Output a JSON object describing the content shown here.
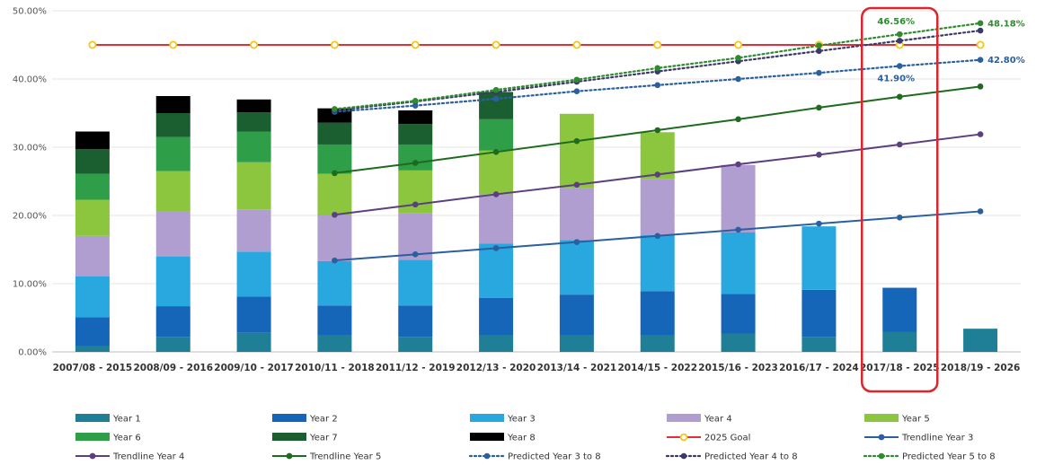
{
  "chart_data": {
    "type": "bar",
    "stacked": true,
    "categories": [
      "2007/08 - 2015",
      "2008/09 - 2016",
      "2009/10 - 2017",
      "2010/11 - 2018",
      "2011/12 - 2019",
      "2012/13 - 2020",
      "2013/14 - 2021",
      "2014/15 - 2022",
      "2015/16 - 2023",
      "2016/17 - 2024",
      "2017/18 - 2025",
      "2018/19 - 2026"
    ],
    "ylim": [
      0,
      50
    ],
    "yticks": [
      "0.00%",
      "10.00%",
      "20.00%",
      "30.00%",
      "40.00%",
      "50.00%"
    ],
    "grid": true,
    "legend_position": "bottom",
    "highlight_category": "2017/18 - 2025",
    "series": [
      {
        "name": "Year 1",
        "color": "#1f7f96",
        "values": [
          0.8,
          2.2,
          2.8,
          2.5,
          2.2,
          2.5,
          2.5,
          2.5,
          2.7,
          2.2,
          2.9,
          3.4
        ]
      },
      {
        "name": "Year 2",
        "color": "#1565b8",
        "values": [
          4.3,
          4.5,
          5.3,
          4.3,
          4.6,
          5.4,
          5.9,
          6.4,
          5.8,
          6.9,
          6.5,
          null
        ]
      },
      {
        "name": "Year 3",
        "color": "#29a8e0",
        "values": [
          6.0,
          7.3,
          6.6,
          6.5,
          6.7,
          8.0,
          8.0,
          8.2,
          9.0,
          9.3,
          null,
          null
        ]
      },
      {
        "name": "Year 4",
        "color": "#b19ed0",
        "values": [
          5.9,
          6.6,
          6.2,
          6.7,
          6.8,
          7.2,
          7.6,
          8.2,
          9.9,
          null,
          null,
          null
        ]
      },
      {
        "name": "Year 5",
        "color": "#8cc63f",
        "values": [
          5.3,
          5.9,
          6.9,
          6.1,
          6.3,
          6.4,
          10.9,
          6.9,
          null,
          null,
          null,
          null
        ]
      },
      {
        "name": "Year 6",
        "color": "#2e9e48",
        "values": [
          3.8,
          5.0,
          4.5,
          4.3,
          3.8,
          4.6,
          null,
          null,
          null,
          null,
          null,
          null
        ]
      },
      {
        "name": "Year 7",
        "color": "#1b5e30",
        "values": [
          3.6,
          3.5,
          2.8,
          3.2,
          3.0,
          4.0,
          null,
          null,
          null,
          null,
          null,
          null
        ]
      },
      {
        "name": "Year 8",
        "color": "#000000",
        "values": [
          2.6,
          2.5,
          1.9,
          2.1,
          2.0,
          null,
          null,
          null,
          null,
          null,
          null,
          null
        ]
      }
    ],
    "lines": [
      {
        "name": "2025 Goal",
        "color": "#e0303a",
        "marker_color": "#f5c518",
        "style": "solid",
        "x_start": 0,
        "values": [
          45,
          45,
          45,
          45,
          45,
          45,
          45,
          45,
          45,
          45,
          45,
          45
        ]
      },
      {
        "name": "Trendline Year 3",
        "color": "#2a5fa0",
        "style": "solid",
        "x_start": 3,
        "values": [
          13.4,
          14.3,
          15.2,
          16.1,
          17.0,
          17.9,
          18.8,
          19.7,
          20.6
        ]
      },
      {
        "name": "Trendline Year 4",
        "color": "#5c3f80",
        "style": "solid",
        "x_start": 3,
        "values": [
          20.1,
          21.6,
          23.1,
          24.5,
          26.0,
          27.5,
          28.9,
          30.4,
          31.9
        ]
      },
      {
        "name": "Trendline Year 5",
        "color": "#1e6b1e",
        "style": "solid",
        "x_start": 3,
        "values": [
          26.2,
          27.7,
          29.3,
          30.9,
          32.5,
          34.1,
          35.8,
          37.4,
          38.9
        ]
      },
      {
        "name": "Predicted Year 3 to 8",
        "color": "#2a5fa0",
        "style": "dotted",
        "x_start": 3,
        "values": [
          35.2,
          36.1,
          37.1,
          38.2,
          39.1,
          40.0,
          40.9,
          41.9,
          42.8
        ]
      },
      {
        "name": "Predicted Year 4 to 8",
        "color": "#3a3a6a",
        "style": "dotted",
        "x_start": 3,
        "values": [
          35.4,
          36.7,
          38.1,
          39.6,
          41.1,
          42.6,
          44.1,
          45.6,
          47.1
        ]
      },
      {
        "name": "Predicted Year 5 to 8",
        "color": "#2e8b2e",
        "style": "dotted",
        "x_start": 3,
        "values": [
          35.6,
          36.8,
          38.4,
          39.9,
          41.6,
          43.1,
          44.9,
          46.56,
          48.18
        ]
      }
    ],
    "annotations": [
      {
        "text": "46.56%",
        "category": "2017/18 - 2025",
        "y": 46.56,
        "color": "#2e8b2e",
        "placement": "above"
      },
      {
        "text": "41.90%",
        "category": "2017/18 - 2025",
        "y": 41.9,
        "color": "#2a5fa0",
        "placement": "below"
      },
      {
        "text": "48.18%",
        "category": "2018/19 - 2026",
        "y": 48.18,
        "color": "#2e8b2e",
        "placement": "right"
      },
      {
        "text": "42.80%",
        "category": "2018/19 - 2026",
        "y": 42.8,
        "color": "#2a5fa0",
        "placement": "right"
      }
    ]
  },
  "legend": [
    {
      "label": "Year 1",
      "kind": "bar",
      "color": "#1f7f96"
    },
    {
      "label": "Year 2",
      "kind": "bar",
      "color": "#1565b8"
    },
    {
      "label": "Year 3",
      "kind": "bar",
      "color": "#29a8e0"
    },
    {
      "label": "Year 4",
      "kind": "bar",
      "color": "#b19ed0"
    },
    {
      "label": "Year 5",
      "kind": "bar",
      "color": "#8cc63f"
    },
    {
      "label": "Year 6",
      "kind": "bar",
      "color": "#2e9e48"
    },
    {
      "label": "Year 7",
      "kind": "bar",
      "color": "#1b5e30"
    },
    {
      "label": "Year 8",
      "kind": "bar",
      "color": "#000000"
    },
    {
      "label": "2025 Goal",
      "kind": "line",
      "color": "#e0303a",
      "marker_color": "#f5c518"
    },
    {
      "label": "Trendline Year 3",
      "kind": "line",
      "color": "#2a5fa0"
    },
    {
      "label": "Trendline Year 4",
      "kind": "line",
      "color": "#5c3f80"
    },
    {
      "label": "Trendline Year 5",
      "kind": "line",
      "color": "#1e6b1e"
    },
    {
      "label": "Predicted Year 3 to 8",
      "kind": "dotted",
      "color": "#2a5fa0"
    },
    {
      "label": "Predicted Year 4 to 8",
      "kind": "dotted",
      "color": "#3a3a6a"
    },
    {
      "label": "Predicted Year 5 to 8",
      "kind": "dotted",
      "color": "#2e8b2e"
    }
  ]
}
